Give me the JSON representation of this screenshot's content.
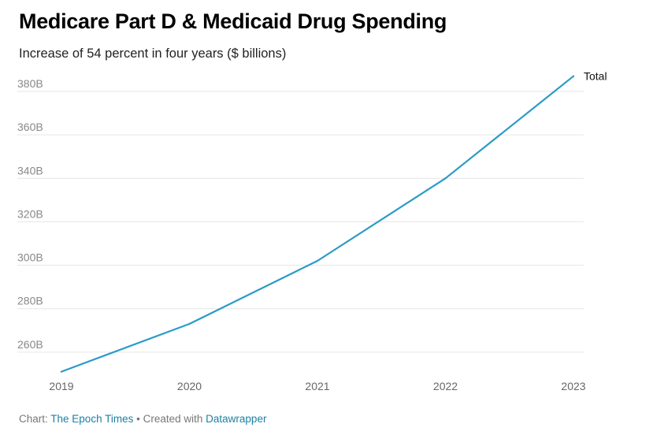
{
  "header": {
    "title": "Medicare Part D & Medicaid Drug Spending",
    "subtitle": "Increase of 54 percent in four years ($ billions)"
  },
  "footer": {
    "chart_prefix": "Chart:",
    "source": "The Epoch Times",
    "separator": "•",
    "created_prefix": "Created with",
    "tool": "Datawrapper"
  },
  "colors": {
    "line": "#2a9bc7",
    "grid": "#e6e6e6",
    "tick_text": "#888888",
    "link": "#1d81a2"
  },
  "chart_data": {
    "type": "line",
    "title": "Medicare Part D & Medicaid Drug Spending",
    "subtitle": "Increase of 54 percent in four years ($ billions)",
    "x": [
      "2019",
      "2020",
      "2021",
      "2022",
      "2023"
    ],
    "series": [
      {
        "name": "Total",
        "values": [
          251,
          273,
          302,
          340,
          387
        ]
      }
    ],
    "yticks": [
      260,
      280,
      300,
      320,
      340,
      360,
      380
    ],
    "ytick_labels": [
      "260B",
      "280B",
      "300B",
      "320B",
      "340B",
      "360B",
      "380B"
    ],
    "ylim": [
      250,
      390
    ],
    "grid": true,
    "legend": "line-end label"
  }
}
